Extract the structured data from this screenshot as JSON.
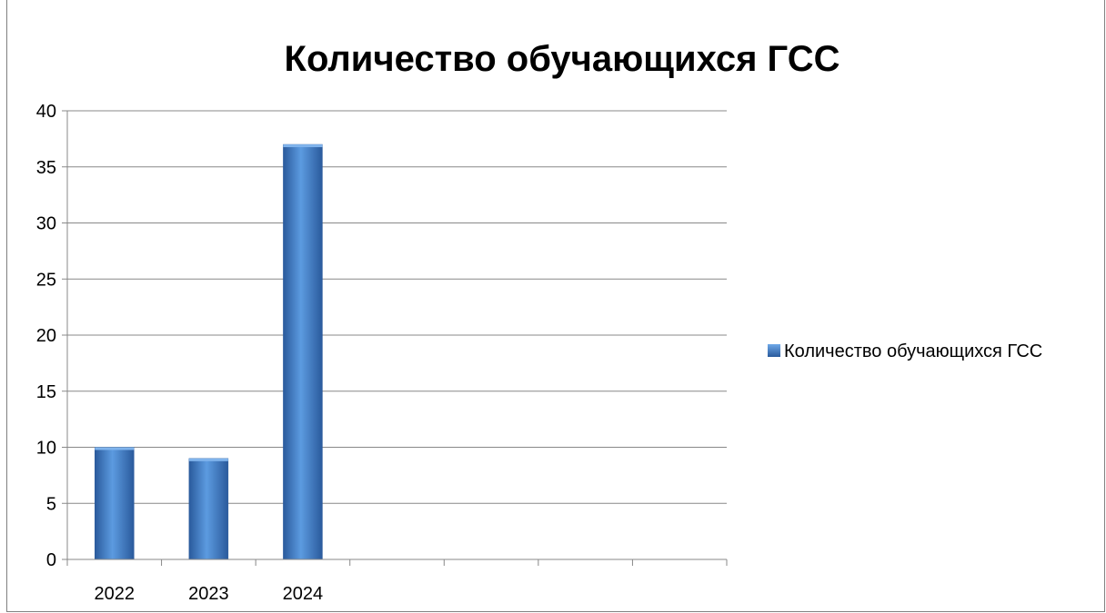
{
  "chart_data": {
    "type": "bar",
    "title": "Количество обучающихся ГСС",
    "xlabel": "",
    "ylabel": "",
    "categories": [
      "2022",
      "2023",
      "2024",
      "",
      "",
      "",
      ""
    ],
    "series": [
      {
        "name": "Количество обучающихся ГСС",
        "values": [
          10,
          9,
          37,
          null,
          null,
          null,
          null
        ],
        "color": "#3E77C0"
      }
    ],
    "ylim": [
      0,
      40
    ],
    "yticks": [
      "0",
      "5",
      "10",
      "15",
      "20",
      "25",
      "30",
      "35",
      "40"
    ],
    "grid": true,
    "legend_position": "right",
    "colors": {
      "bar_dark": "#2B5FA5",
      "bar_light": "#5C9BE0",
      "grid": "#888888",
      "axis": "#888888"
    }
  }
}
